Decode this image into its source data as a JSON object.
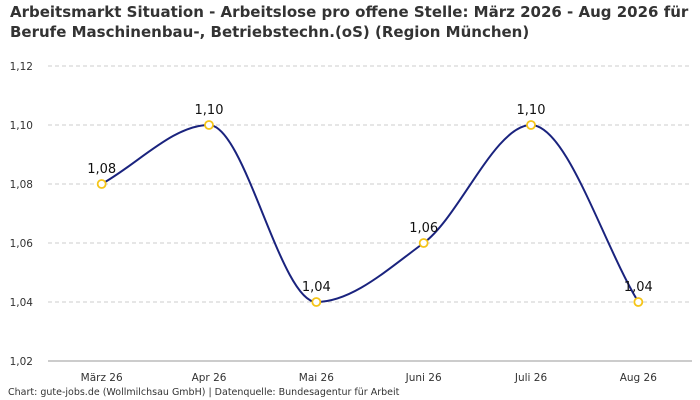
{
  "title": "Arbeitsmarkt Situation - Arbeitslose pro offene Stelle: März 2026 - Aug 2026 für Berufe Maschinenbau-, Betriebstechn.(oS) (Region München)",
  "footer": "Chart: gute-jobs.de (Wollmilchsau GmbH) | Datenquelle: Bundesagentur für Arbeit",
  "colors": {
    "line": "#1a237e",
    "marker_stroke": "#f5c518",
    "marker_fill": "#ffffff",
    "grid": "#cccccc",
    "text": "#333333"
  },
  "chart_data": {
    "type": "line",
    "categories": [
      "März 26",
      "Apr 26",
      "Mai 26",
      "Juni 26",
      "Juli 26",
      "Aug 26"
    ],
    "values": [
      1.08,
      1.1,
      1.04,
      1.06,
      1.1,
      1.04
    ],
    "data_labels": [
      "1,08",
      "1,10",
      "1,04",
      "1,06",
      "1,10",
      "1,04"
    ],
    "yticks": [
      1.02,
      1.04,
      1.06,
      1.08,
      1.1,
      1.12
    ],
    "ytick_labels": [
      "1,02",
      "1,04",
      "1,06",
      "1,08",
      "1,10",
      "1,12"
    ],
    "ylim": [
      1.02,
      1.12
    ],
    "smooth": true,
    "grid": "horizontal-dashed",
    "legend": "none"
  }
}
